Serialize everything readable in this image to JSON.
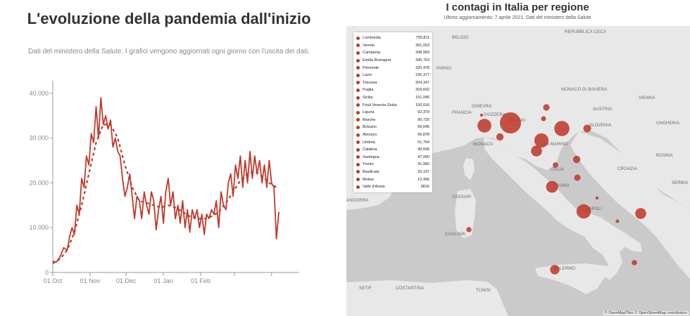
{
  "left": {
    "title": "L'evoluzione della pandemia dall'inizio",
    "subtitle": "Dati del ministero della Salute. I grafici vengono aggiornati ogni giorno con l'uscita dei dati."
  },
  "chart_data": [
    {
      "type": "line",
      "title": "L'evoluzione della pandemia dall'inizio",
      "xlabel": "",
      "ylabel": "",
      "ylim": [
        0,
        42000
      ],
      "yticks": [
        "0",
        "10.000",
        "20.000",
        "30.000",
        "40.000"
      ],
      "xticks": [
        "01 Oct",
        "01 Nov",
        "01 Dec",
        "01 Jan",
        "01 Feb"
      ],
      "grid": false,
      "legend": "none",
      "series": [
        {
          "style": "solid",
          "x": [
            "01 Oct",
            "04 Oct",
            "07 Oct",
            "10 Oct",
            "13 Oct",
            "15 Oct",
            "17 Oct",
            "19 Oct",
            "21 Oct",
            "23 Oct",
            "25 Oct",
            "27 Oct",
            "29 Oct",
            "31 Oct",
            "02 Nov",
            "04 Nov",
            "06 Nov",
            "08 Nov",
            "10 Nov",
            "12 Nov",
            "14 Nov",
            "16 Nov",
            "18 Nov",
            "20 Nov",
            "22 Nov",
            "24 Nov",
            "26 Nov",
            "28 Nov",
            "30 Nov",
            "02 Dec",
            "04 Dec",
            "06 Dec",
            "08 Dec",
            "10 Dec",
            "12 Dec",
            "14 Dec",
            "16 Dec",
            "18 Dec",
            "20 Dec",
            "22 Dec",
            "24 Dec",
            "26 Dec",
            "28 Dec",
            "30 Dec",
            "01 Jan",
            "03 Jan",
            "05 Jan",
            "07 Jan",
            "09 Jan",
            "11 Jan",
            "13 Jan",
            "15 Jan",
            "17 Jan",
            "19 Jan",
            "21 Jan",
            "23 Jan",
            "25 Jan",
            "27 Jan",
            "29 Jan",
            "31 Jan",
            "02 Feb",
            "04 Feb",
            "06 Feb",
            "08 Feb",
            "10 Feb",
            "12 Feb",
            "14 Feb",
            "16 Feb",
            "18 Feb",
            "20 Feb",
            "22 Feb",
            "24 Feb",
            "26 Feb",
            "28 Feb",
            "02 Mar",
            "04 Mar",
            "06 Mar",
            "08 Mar",
            "10 Mar",
            "12 Mar",
            "14 Mar",
            "16 Mar",
            "18 Mar",
            "20 Mar",
            "22 Mar",
            "24 Mar",
            "26 Mar",
            "28 Mar",
            "30 Mar",
            "01 Apr",
            "03 Apr",
            "05 Apr",
            "07 Apr"
          ],
          "values": [
            2500,
            2300,
            3500,
            5500,
            5000,
            8000,
            10000,
            8500,
            15000,
            13000,
            21000,
            19000,
            26000,
            24000,
            31000,
            29000,
            37000,
            30000,
            39000,
            33000,
            35000,
            32000,
            34000,
            28000,
            30000,
            27000,
            26000,
            21000,
            17000,
            19000,
            22000,
            17000,
            12000,
            17000,
            16000,
            12000,
            18000,
            15000,
            13000,
            18000,
            16000,
            9500,
            14000,
            17000,
            11000,
            18000,
            21000,
            15000,
            18000,
            12000,
            15000,
            11000,
            16000,
            10000,
            14000,
            9000,
            14000,
            12000,
            14000,
            10000,
            13000,
            8500,
            13000,
            12000,
            14000,
            13000,
            16000,
            10000,
            18000,
            15000,
            14000,
            20000,
            22000,
            17000,
            24000,
            21000,
            26000,
            19000,
            25000,
            20000,
            27000,
            21000,
            26000,
            22000,
            25000,
            20000,
            24000,
            19000,
            25000,
            20000,
            19000,
            7500,
            13500
          ]
        },
        {
          "style": "dashed",
          "x": [
            "01 Oct",
            "07 Oct",
            "13 Oct",
            "19 Oct",
            "25 Oct",
            "31 Oct",
            "06 Nov",
            "12 Nov",
            "18 Nov",
            "24 Nov",
            "30 Nov",
            "06 Dec",
            "12 Dec",
            "18 Dec",
            "24 Dec",
            "30 Dec",
            "05 Jan",
            "11 Jan",
            "17 Jan",
            "23 Jan",
            "29 Jan",
            "04 Feb",
            "10 Feb",
            "16 Feb",
            "22 Feb",
            "28 Feb",
            "06 Mar",
            "12 Mar",
            "18 Mar",
            "24 Mar",
            "30 Mar",
            "05 Apr"
          ],
          "values": [
            2000,
            3000,
            5000,
            9000,
            15000,
            22000,
            29000,
            33000,
            33000,
            30000,
            24000,
            19000,
            16000,
            15500,
            15000,
            14500,
            15000,
            14500,
            13500,
            12500,
            12000,
            12000,
            12500,
            13500,
            15500,
            18000,
            20500,
            22000,
            22500,
            21500,
            20000,
            19000
          ]
        }
      ]
    },
    {
      "type": "map",
      "title": "I contagi in Italia per regione",
      "subtitle": "Ultimo aggiornamento: 7 aprile 2021. Dati del ministero della Salute",
      "legend": "top-left",
      "categories": [
        "Lombardia",
        "Veneto",
        "Campania",
        "Emilia Romagna",
        "Piemonte",
        "Lazio",
        "Toscana",
        "Puglia",
        "Sicilia",
        "Friuli Venezia Giulia",
        "Liguria",
        "Marche",
        "Bolzano",
        "Abruzzo",
        "Umbria",
        "Calabria",
        "Sardegna",
        "Trento",
        "Basilicata",
        "Molise",
        "Valle d'Aosta"
      ],
      "values": [
        755811,
        391053,
        348959,
        345753,
        320478,
        235377,
        204347,
        203602,
        151946,
        100016,
        92379,
        90720,
        69645,
        66878,
        51764,
        49596,
        47000,
        41950,
        20197,
        12456,
        9816
      ],
      "labels": [
        "755,811",
        "391,053",
        "348,959",
        "345,753",
        "320,478",
        "235,377",
        "204,347",
        "203,602",
        "151,946",
        "100,016",
        "92,379",
        "90,720",
        "69,645",
        "66,878",
        "51,764",
        "49,596",
        "47,000",
        "41,950",
        "20,197",
        "12,456",
        "9816"
      ]
    }
  ],
  "right": {
    "title": "I contagi in Italia per regione",
    "subtitle": "Ultimo aggiornamento: 7 aprile 2021. Dati del ministero della Salute",
    "attribution": "© OpenMapTiles © OpenStreetMap contributors",
    "places": [
      "BELGIO",
      "REPUBBLICA CECA",
      "PARIGI",
      "FRANCIA",
      "SVIZZERA",
      "MONACO DI BAVIERA",
      "AUSTRIA",
      "VIENNA",
      "UNGHERIA",
      "GINEVRA",
      "MILANO",
      "MONACO",
      "CROAZIA",
      "SLOVENIA",
      "SAN MARINO",
      "ITALIA",
      "BOSNIA",
      "SERBIA",
      "ROMA",
      "NAPOLI",
      "SASSARI",
      "CAGLIARI",
      "PALERMO",
      "TUNISI",
      "SETIF",
      "COSTANTINA",
      "ANDORRA"
    ]
  },
  "colors": {
    "line": "#c0392b",
    "bubble": "#c0392b",
    "land": "#e8e8e8",
    "sea": "#cacaca"
  }
}
